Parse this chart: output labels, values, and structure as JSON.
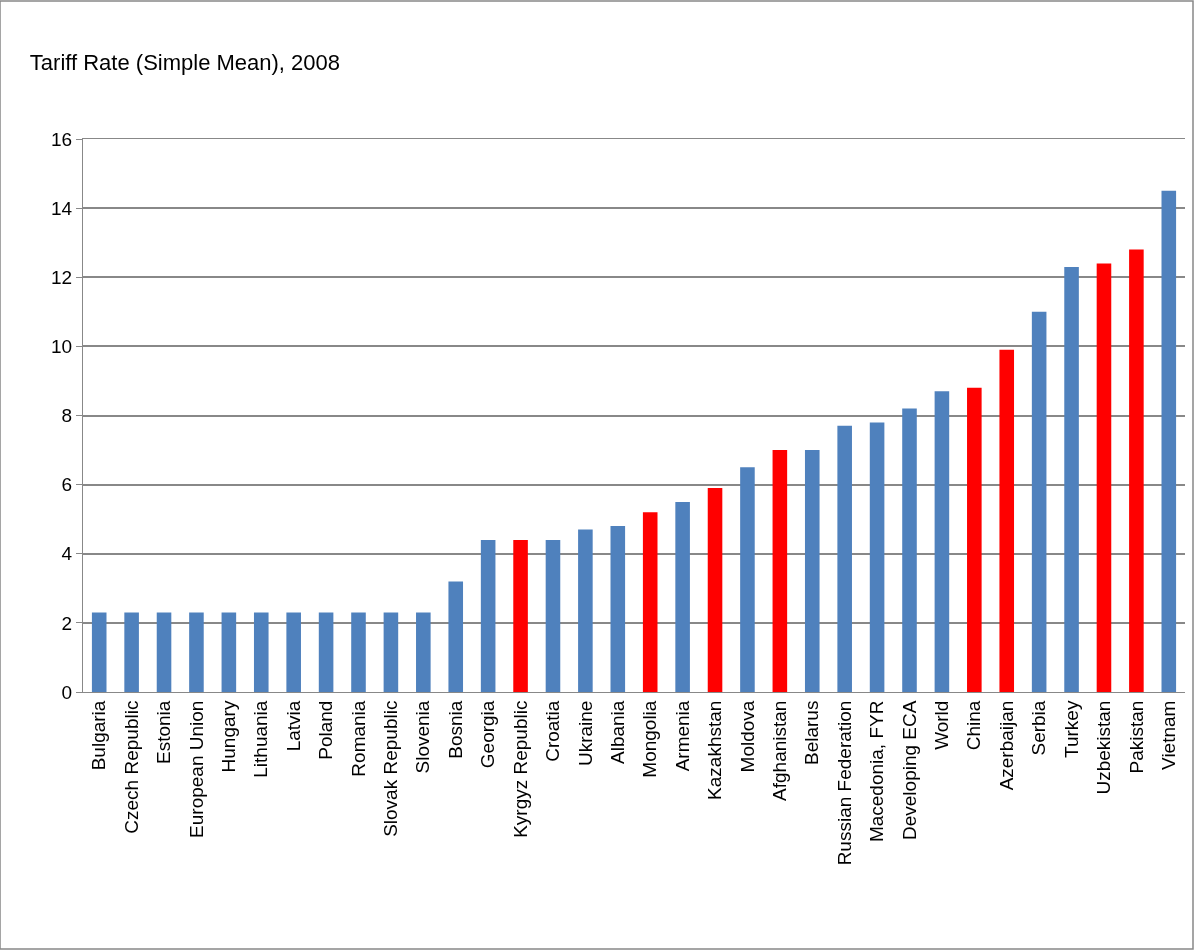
{
  "chart_data": {
    "type": "bar",
    "title": "Tariff Rate (Simple Mean), 2008",
    "categories": [
      "Bulgaria",
      "Czech Republic",
      "Estonia",
      "European Union",
      "Hungary",
      "Lithuania",
      "Latvia",
      "Poland",
      "Romania",
      "Slovak Republic",
      "Slovenia",
      "Bosnia",
      "Georgia",
      "Kyrgyz Republic",
      "Croatia",
      "Ukraine",
      "Albania",
      "Mongolia",
      "Armenia",
      "Kazakhstan",
      "Moldova",
      "Afghanistan",
      "Belarus",
      "Russian Federation",
      "Macedonia, FYR",
      "Developing ECA",
      "World",
      "China",
      "Azerbaijan",
      "Serbia",
      "Turkey",
      "Uzbekistan",
      "Pakistan",
      "Vietnam"
    ],
    "values": [
      2.3,
      2.3,
      2.3,
      2.3,
      2.3,
      2.3,
      2.3,
      2.3,
      2.3,
      2.3,
      2.3,
      3.2,
      4.4,
      4.4,
      4.4,
      4.7,
      4.8,
      5.2,
      5.5,
      5.9,
      6.5,
      7.0,
      7.0,
      7.7,
      7.8,
      8.2,
      8.7,
      8.8,
      9.9,
      11.0,
      12.3,
      12.4,
      12.8,
      14.5
    ],
    "colors": [
      "#4f81bd",
      "#4f81bd",
      "#4f81bd",
      "#4f81bd",
      "#4f81bd",
      "#4f81bd",
      "#4f81bd",
      "#4f81bd",
      "#4f81bd",
      "#4f81bd",
      "#4f81bd",
      "#4f81bd",
      "#4f81bd",
      "#ff0000",
      "#4f81bd",
      "#4f81bd",
      "#4f81bd",
      "#ff0000",
      "#4f81bd",
      "#ff0000",
      "#4f81bd",
      "#ff0000",
      "#4f81bd",
      "#4f81bd",
      "#4f81bd",
      "#4f81bd",
      "#4f81bd",
      "#ff0000",
      "#ff0000",
      "#4f81bd",
      "#4f81bd",
      "#ff0000",
      "#ff0000",
      "#4f81bd"
    ],
    "ylim": [
      0,
      16
    ],
    "yticks": [
      0,
      2,
      4,
      6,
      8,
      10,
      12,
      14,
      16
    ],
    "grid": "y"
  }
}
